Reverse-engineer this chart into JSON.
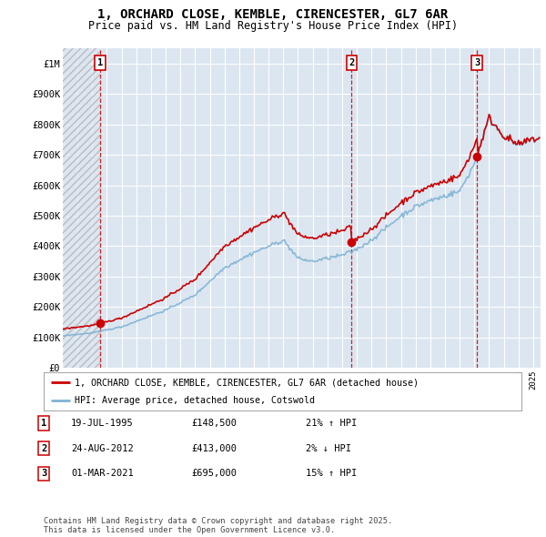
{
  "title": "1, ORCHARD CLOSE, KEMBLE, CIRENCESTER, GL7 6AR",
  "subtitle": "Price paid vs. HM Land Registry's House Price Index (HPI)",
  "legend_line1": "1, ORCHARD CLOSE, KEMBLE, CIRENCESTER, GL7 6AR (detached house)",
  "legend_line2": "HPI: Average price, detached house, Cotswold",
  "footer": "Contains HM Land Registry data © Crown copyright and database right 2025.\nThis data is licensed under the Open Government Licence v3.0.",
  "sale_color": "#cc0000",
  "hpi_color": "#7fb3d3",
  "background_color": "#ffffff",
  "plot_bg_color": "#dce6f1",
  "grid_color": "#ffffff",
  "ylim": [
    0,
    1050000
  ],
  "yticks": [
    0,
    100000,
    200000,
    300000,
    400000,
    500000,
    600000,
    700000,
    800000,
    900000,
    1000000
  ],
  "ytick_labels": [
    "£0",
    "£100K",
    "£200K",
    "£300K",
    "£400K",
    "£500K",
    "£600K",
    "£700K",
    "£800K",
    "£900K",
    "£1M"
  ],
  "sales": [
    {
      "date": 1995.55,
      "price": 148500,
      "label": "1"
    },
    {
      "date": 2012.65,
      "price": 413000,
      "label": "2"
    },
    {
      "date": 2021.17,
      "price": 695000,
      "label": "3"
    }
  ],
  "sale_table": [
    {
      "num": "1",
      "date": "19-JUL-1995",
      "price": "£148,500",
      "hpi": "21% ↑ HPI"
    },
    {
      "num": "2",
      "date": "24-AUG-2012",
      "price": "£413,000",
      "hpi": "2% ↓ HPI"
    },
    {
      "num": "3",
      "date": "01-MAR-2021",
      "price": "£695,000",
      "hpi": "15% ↑ HPI"
    }
  ],
  "xlim_start": 1993.0,
  "xlim_end": 2025.5,
  "hatch_end": 1995.55
}
